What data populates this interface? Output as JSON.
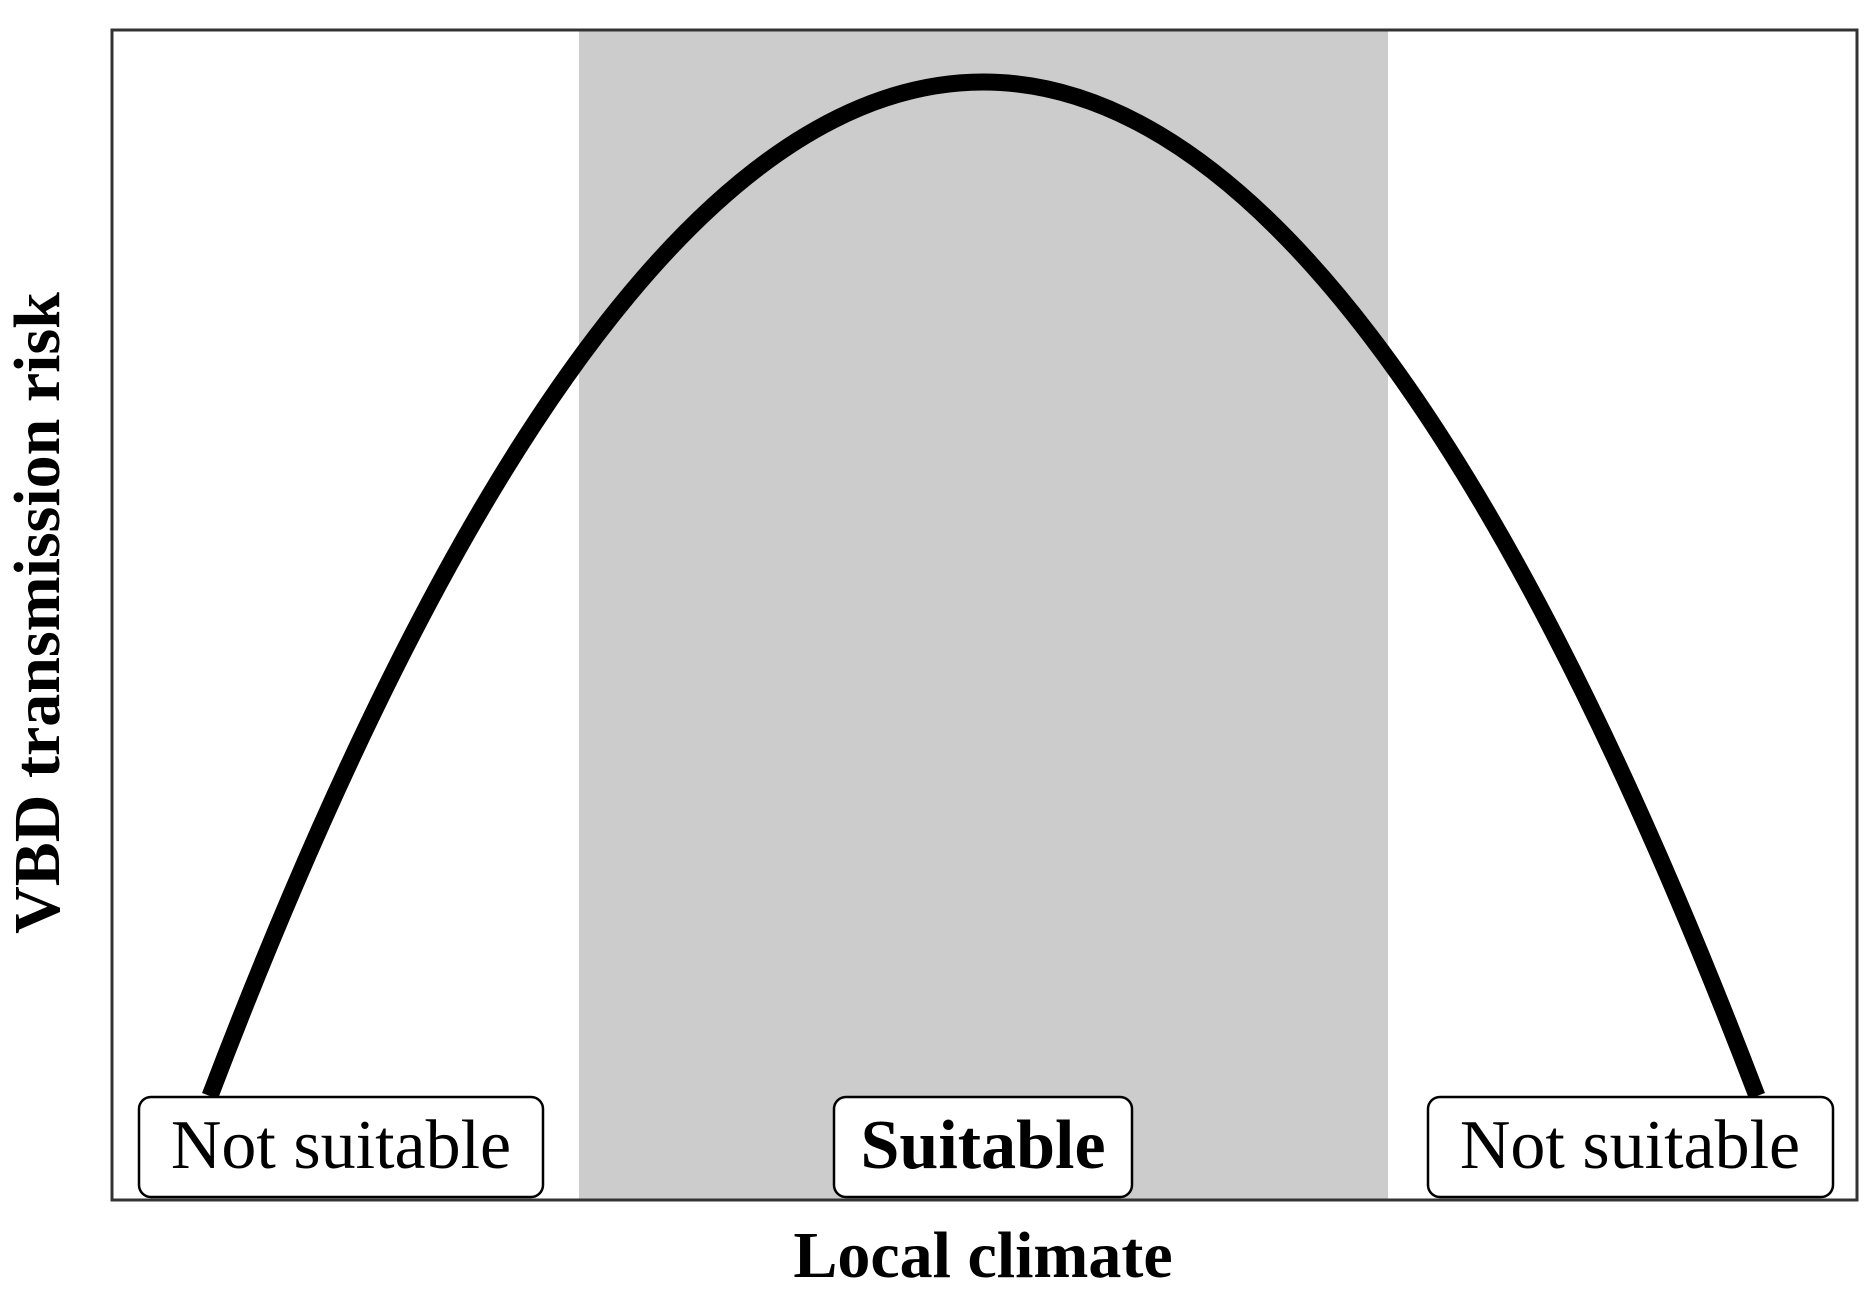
{
  "axes": {
    "x_label": "Local climate",
    "y_label": "VBD transmission risk"
  },
  "regions": [
    {
      "label": "Not suitable"
    },
    {
      "label": "Suitable"
    },
    {
      "label": "Not suitable"
    }
  ]
}
